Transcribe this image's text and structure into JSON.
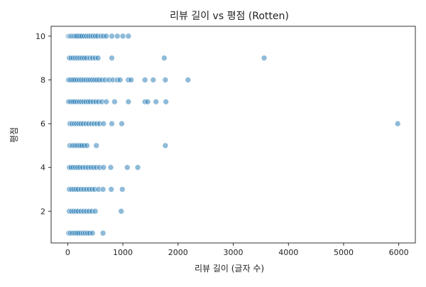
{
  "chart_data": {
    "type": "scatter",
    "title": "리뷰 길이 vs 평점 (Rotten)",
    "xlabel": "리뷰 길이 (글자 수)",
    "ylabel": "평점",
    "xlim": [
      -300,
      6300
    ],
    "ylim": [
      0.55,
      10.45
    ],
    "x_ticks": [
      0,
      1000,
      2000,
      3000,
      4000,
      5000,
      6000
    ],
    "y_ticks": [
      2,
      4,
      6,
      8,
      10
    ],
    "grid": false,
    "legend": "none",
    "point_color": "#1f77b4",
    "point_alpha": 0.5,
    "points": [
      [
        10,
        10
      ],
      [
        25,
        10
      ],
      [
        40,
        10
      ],
      [
        55,
        10
      ],
      [
        70,
        10
      ],
      [
        90,
        10
      ],
      [
        110,
        10
      ],
      [
        130,
        10
      ],
      [
        150,
        10
      ],
      [
        170,
        10
      ],
      [
        200,
        10
      ],
      [
        230,
        10
      ],
      [
        260,
        10
      ],
      [
        300,
        10
      ],
      [
        340,
        10
      ],
      [
        380,
        10
      ],
      [
        420,
        10
      ],
      [
        460,
        10
      ],
      [
        500,
        10
      ],
      [
        540,
        10
      ],
      [
        600,
        10
      ],
      [
        650,
        10
      ],
      [
        700,
        10
      ],
      [
        800,
        10
      ],
      [
        900,
        10
      ],
      [
        1000,
        10
      ],
      [
        1100,
        10
      ],
      [
        30,
        9
      ],
      [
        60,
        9
      ],
      [
        100,
        9
      ],
      [
        140,
        9
      ],
      [
        180,
        9
      ],
      [
        220,
        9
      ],
      [
        260,
        9
      ],
      [
        300,
        9
      ],
      [
        340,
        9
      ],
      [
        400,
        9
      ],
      [
        450,
        9
      ],
      [
        500,
        9
      ],
      [
        550,
        9
      ],
      [
        800,
        9
      ],
      [
        1750,
        9
      ],
      [
        3560,
        9
      ],
      [
        15,
        8
      ],
      [
        40,
        8
      ],
      [
        70,
        8
      ],
      [
        100,
        8
      ],
      [
        130,
        8
      ],
      [
        170,
        8
      ],
      [
        210,
        8
      ],
      [
        250,
        8
      ],
      [
        290,
        8
      ],
      [
        330,
        8
      ],
      [
        370,
        8
      ],
      [
        410,
        8
      ],
      [
        450,
        8
      ],
      [
        490,
        8
      ],
      [
        530,
        8
      ],
      [
        570,
        8
      ],
      [
        620,
        8
      ],
      [
        680,
        8
      ],
      [
        750,
        8
      ],
      [
        820,
        8
      ],
      [
        900,
        8
      ],
      [
        950,
        8
      ],
      [
        1100,
        8
      ],
      [
        1150,
        8
      ],
      [
        1400,
        8
      ],
      [
        1550,
        8
      ],
      [
        1770,
        8
      ],
      [
        2180,
        8
      ],
      [
        15,
        7
      ],
      [
        40,
        7
      ],
      [
        70,
        7
      ],
      [
        100,
        7
      ],
      [
        130,
        7
      ],
      [
        170,
        7
      ],
      [
        210,
        7
      ],
      [
        250,
        7
      ],
      [
        290,
        7
      ],
      [
        330,
        7
      ],
      [
        370,
        7
      ],
      [
        410,
        7
      ],
      [
        460,
        7
      ],
      [
        510,
        7
      ],
      [
        560,
        7
      ],
      [
        620,
        7
      ],
      [
        700,
        7
      ],
      [
        850,
        7
      ],
      [
        1100,
        7
      ],
      [
        1400,
        7
      ],
      [
        1450,
        7
      ],
      [
        1600,
        7
      ],
      [
        1780,
        7
      ],
      [
        40,
        6
      ],
      [
        80,
        6
      ],
      [
        120,
        6
      ],
      [
        160,
        6
      ],
      [
        200,
        6
      ],
      [
        240,
        6
      ],
      [
        280,
        6
      ],
      [
        330,
        6
      ],
      [
        380,
        6
      ],
      [
        430,
        6
      ],
      [
        480,
        6
      ],
      [
        530,
        6
      ],
      [
        580,
        6
      ],
      [
        650,
        6
      ],
      [
        800,
        6
      ],
      [
        980,
        6
      ],
      [
        5980,
        6
      ],
      [
        40,
        5
      ],
      [
        80,
        5
      ],
      [
        110,
        5
      ],
      [
        140,
        5
      ],
      [
        170,
        5
      ],
      [
        200,
        5
      ],
      [
        230,
        5
      ],
      [
        260,
        5
      ],
      [
        300,
        5
      ],
      [
        350,
        5
      ],
      [
        520,
        5
      ],
      [
        1770,
        5
      ],
      [
        30,
        4
      ],
      [
        60,
        4
      ],
      [
        100,
        4
      ],
      [
        140,
        4
      ],
      [
        180,
        4
      ],
      [
        220,
        4
      ],
      [
        270,
        4
      ],
      [
        320,
        4
      ],
      [
        370,
        4
      ],
      [
        420,
        4
      ],
      [
        470,
        4
      ],
      [
        520,
        4
      ],
      [
        580,
        4
      ],
      [
        650,
        4
      ],
      [
        780,
        4
      ],
      [
        1080,
        4
      ],
      [
        1270,
        4
      ],
      [
        30,
        3
      ],
      [
        70,
        3
      ],
      [
        110,
        3
      ],
      [
        150,
        3
      ],
      [
        190,
        3
      ],
      [
        240,
        3
      ],
      [
        290,
        3
      ],
      [
        340,
        3
      ],
      [
        390,
        3
      ],
      [
        440,
        3
      ],
      [
        490,
        3
      ],
      [
        560,
        3
      ],
      [
        640,
        3
      ],
      [
        790,
        3
      ],
      [
        990,
        3
      ],
      [
        30,
        2
      ],
      [
        70,
        2
      ],
      [
        110,
        2
      ],
      [
        150,
        2
      ],
      [
        190,
        2
      ],
      [
        240,
        2
      ],
      [
        290,
        2
      ],
      [
        340,
        2
      ],
      [
        390,
        2
      ],
      [
        440,
        2
      ],
      [
        500,
        2
      ],
      [
        970,
        2
      ],
      [
        20,
        1
      ],
      [
        50,
        1
      ],
      [
        80,
        1
      ],
      [
        110,
        1
      ],
      [
        140,
        1
      ],
      [
        170,
        1
      ],
      [
        200,
        1
      ],
      [
        240,
        1
      ],
      [
        280,
        1
      ],
      [
        320,
        1
      ],
      [
        360,
        1
      ],
      [
        400,
        1
      ],
      [
        450,
        1
      ],
      [
        640,
        1
      ]
    ]
  }
}
